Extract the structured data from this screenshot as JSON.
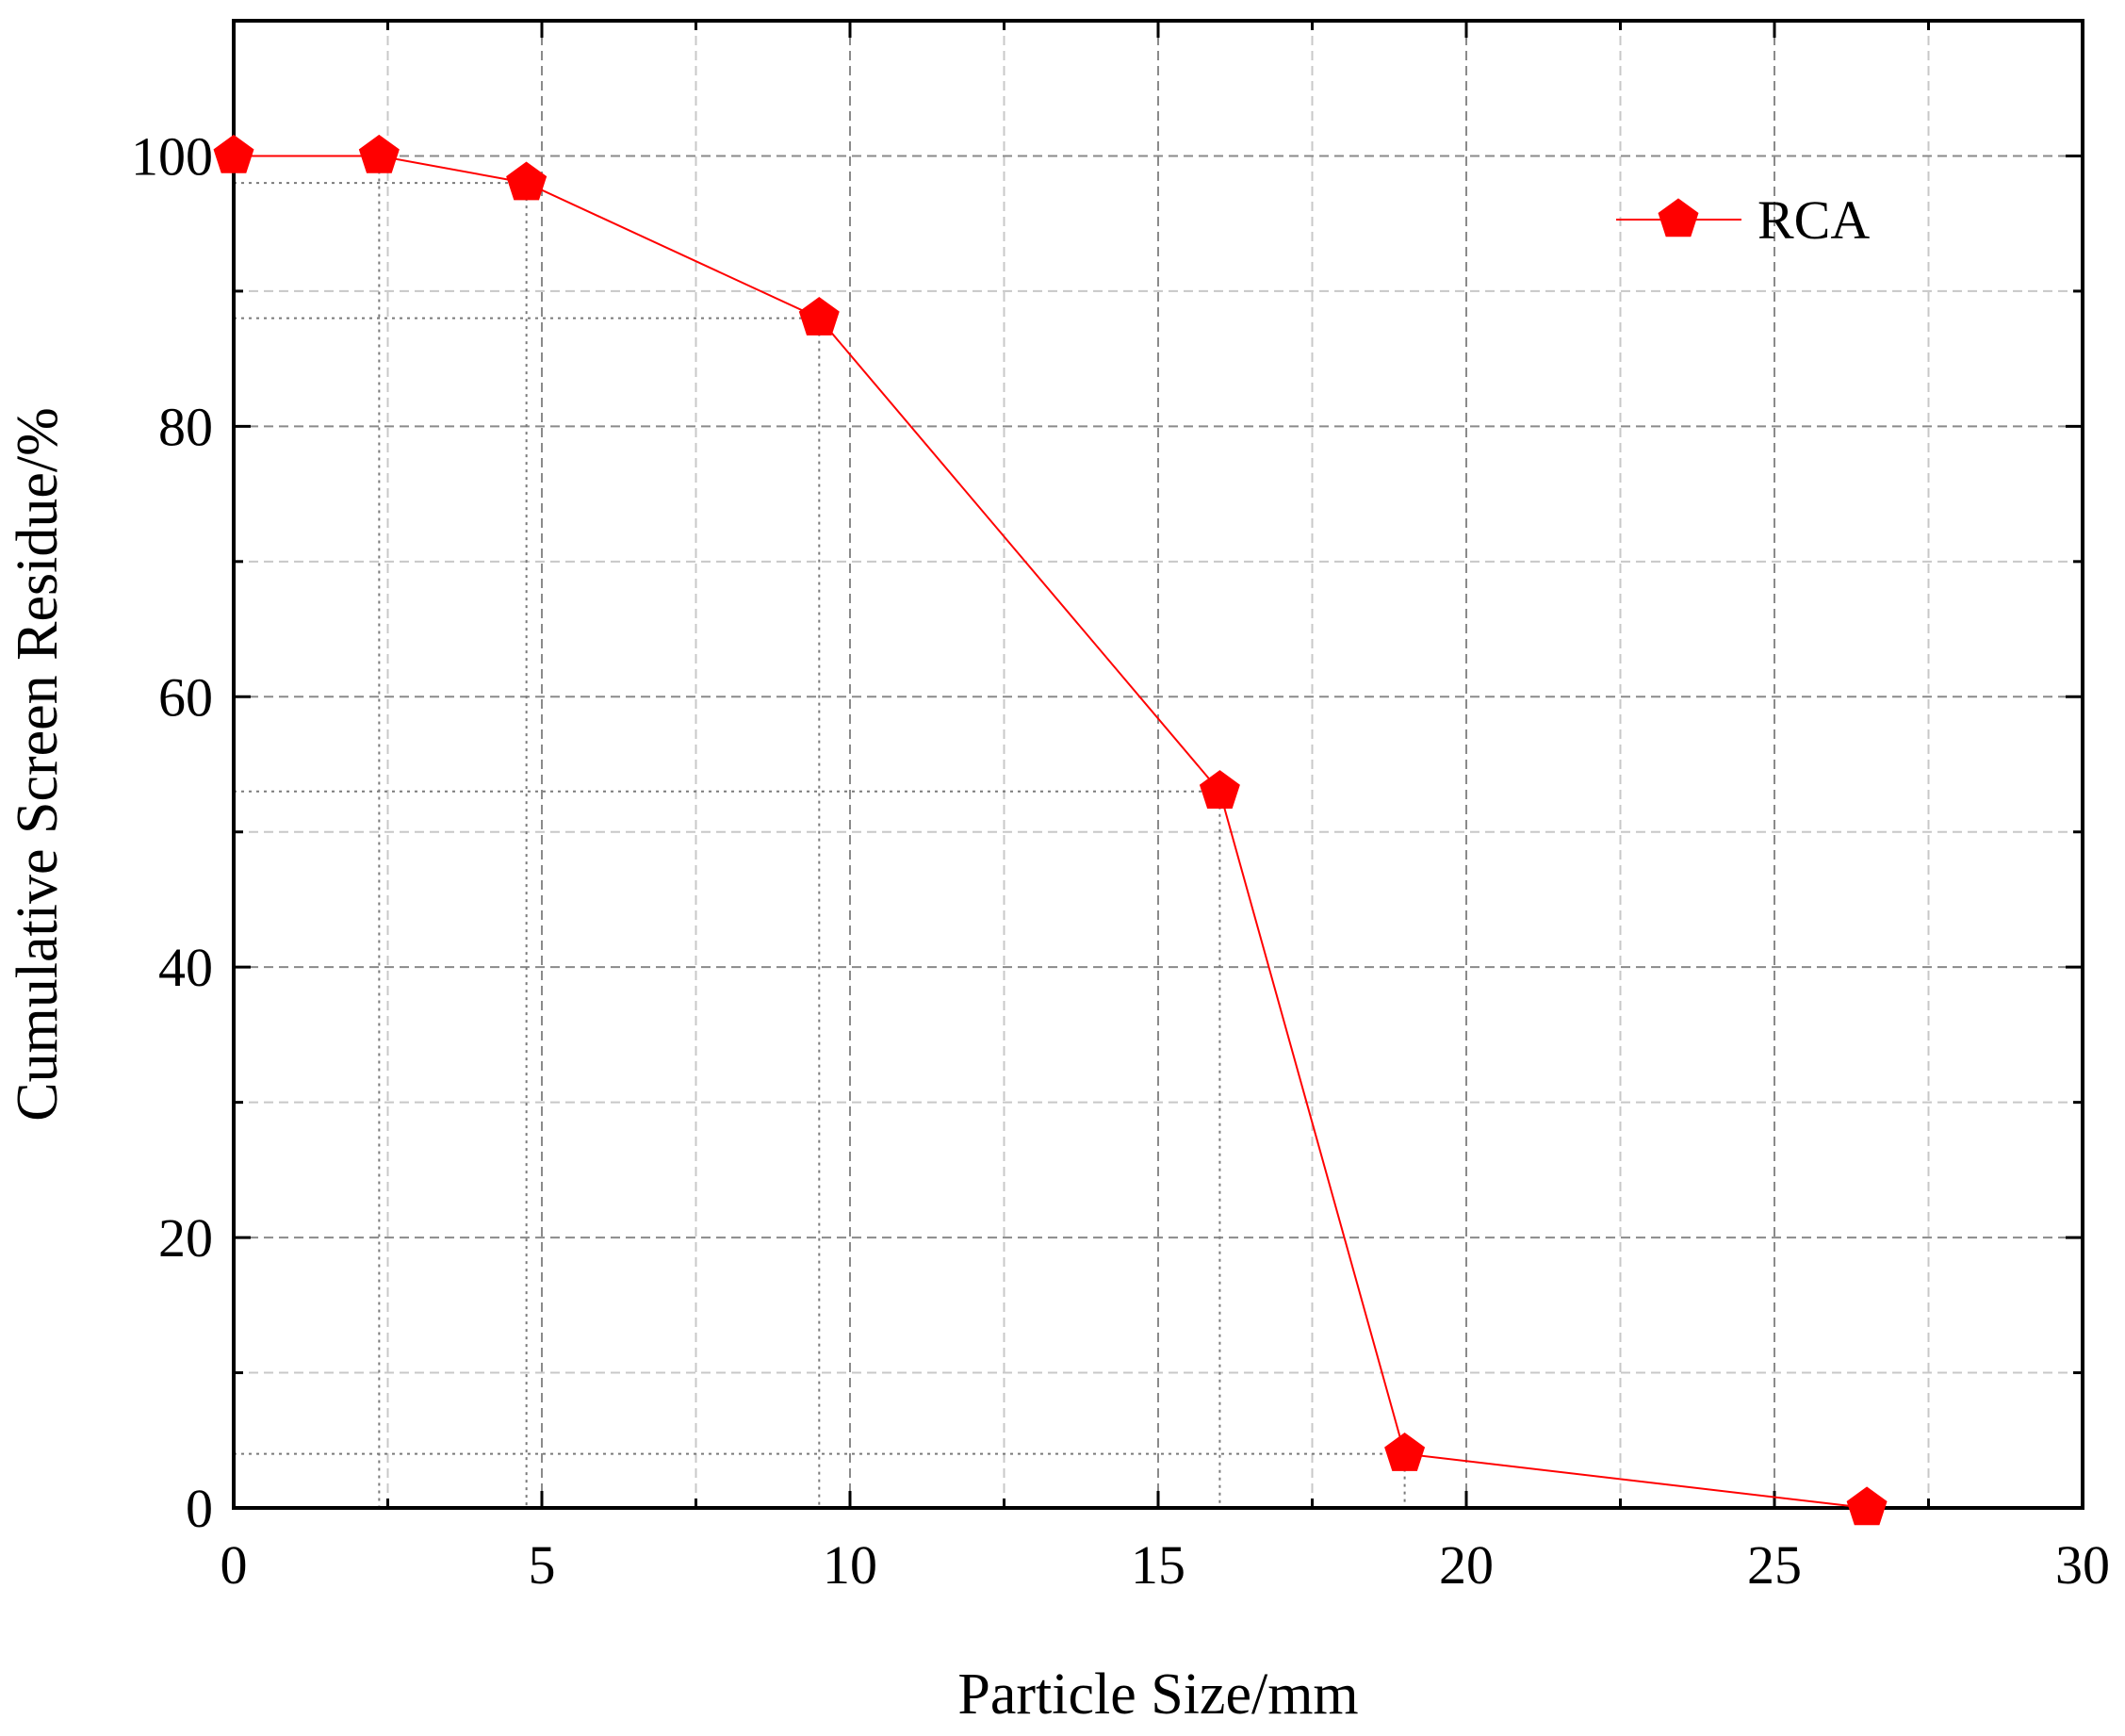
{
  "chart_data": {
    "type": "line",
    "title": "",
    "xlabel": "Particle Size/mm",
    "ylabel": "Cumulative Screen Residue/%",
    "xlim": [
      0,
      30
    ],
    "ylim": [
      0,
      110
    ],
    "x_ticks": [
      0,
      5,
      10,
      15,
      20,
      25,
      30
    ],
    "y_ticks": [
      0,
      20,
      40,
      60,
      80,
      100
    ],
    "x_tick_labels": [
      "0",
      "5",
      "10",
      "15",
      "20",
      "25",
      "30"
    ],
    "y_tick_labels": [
      "0",
      "20",
      "40",
      "60",
      "80",
      "100"
    ],
    "grid": true,
    "legend_position": "top-right",
    "series": [
      {
        "name": "RCA",
        "color": "#ff0000",
        "marker": "pentagon",
        "x": [
          0,
          2.36,
          4.75,
          9.5,
          16,
          19,
          26.5
        ],
        "y": [
          100,
          100,
          98,
          88,
          53,
          4,
          0
        ]
      }
    ]
  }
}
